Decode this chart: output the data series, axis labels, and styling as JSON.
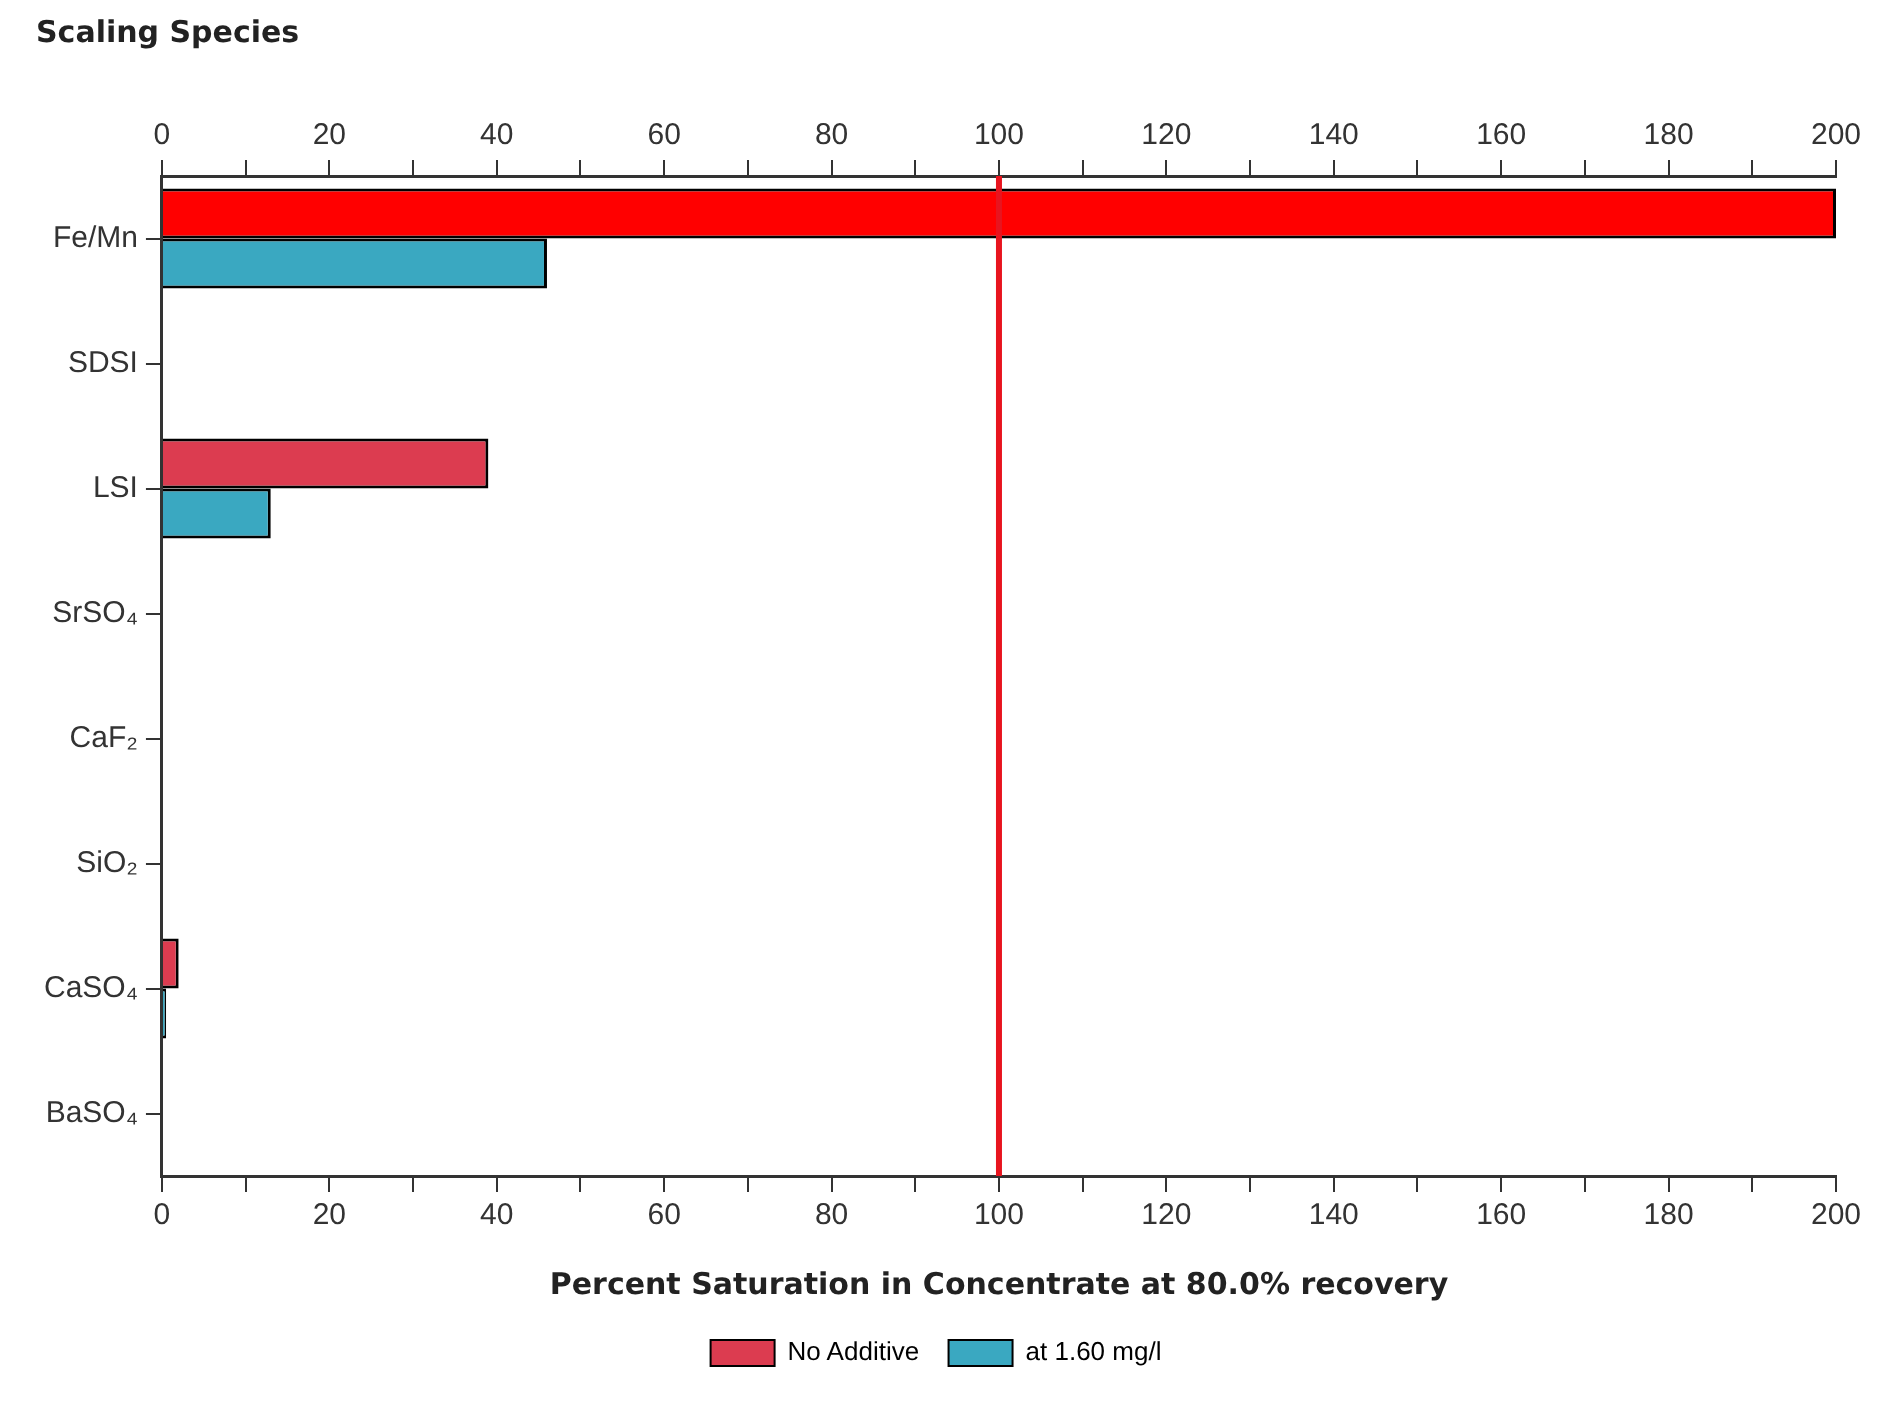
{
  "chart_data": {
    "type": "bar",
    "orientation": "horizontal",
    "title": "Scaling Species",
    "xlabel": "Percent Saturation in Concentrate at 80.0% recovery",
    "categories": [
      "Fe/Mn",
      "SDSI",
      "LSI",
      "SrSO₄",
      "CaF₂",
      "SiO₂",
      "CaSO₄",
      "BaSO₄"
    ],
    "series": [
      {
        "name": "No Additive",
        "color": "#dc3c50",
        "colors": [
          "#ff0000",
          "#dc3c50",
          "#dc3c50",
          "#dc3c50",
          "#dc3c50",
          "#dc3c50",
          "#dc3c50",
          "#dc3c50"
        ],
        "values": [
          200,
          null,
          39,
          null,
          null,
          null,
          2,
          null
        ]
      },
      {
        "name": "at 1.60 mg/l",
        "color": "#3aa8c1",
        "values": [
          46,
          null,
          13,
          null,
          null,
          null,
          0.5,
          null
        ]
      }
    ],
    "xlim": [
      0,
      200
    ],
    "xticks": [
      0,
      {
        "value": 10,
        "label": null
      },
      20,
      {
        "value": 30,
        "label": null
      },
      40,
      {
        "value": 50,
        "label": null
      },
      60,
      {
        "value": 70,
        "label": null
      },
      80,
      {
        "value": 90,
        "label": null
      },
      100,
      {
        "value": 110,
        "label": null
      },
      120,
      {
        "value": 130,
        "label": null
      },
      140,
      {
        "value": 150,
        "label": null
      },
      160,
      {
        "value": 170,
        "label": null
      },
      180,
      {
        "value": 190,
        "label": null
      },
      200
    ],
    "x2lim": [
      0,
      200
    ],
    "x2ticks": [
      0,
      {
        "value": 10,
        "label": null
      },
      20,
      {
        "value": 30,
        "label": null
      },
      40,
      {
        "value": 50,
        "label": null
      },
      60,
      {
        "value": 70,
        "label": null
      },
      80,
      {
        "value": 90,
        "label": null
      },
      100,
      {
        "value": 110,
        "label": null
      },
      120,
      {
        "value": 130,
        "label": null
      },
      140,
      {
        "value": 150,
        "label": null
      },
      160,
      {
        "value": 170,
        "label": null
      },
      180,
      {
        "value": 190,
        "label": null
      },
      200
    ],
    "ref_lines": [
      {
        "axis": "x",
        "value": 100,
        "color": "#e8141e"
      }
    ],
    "grid": false,
    "legend": "bottom"
  }
}
